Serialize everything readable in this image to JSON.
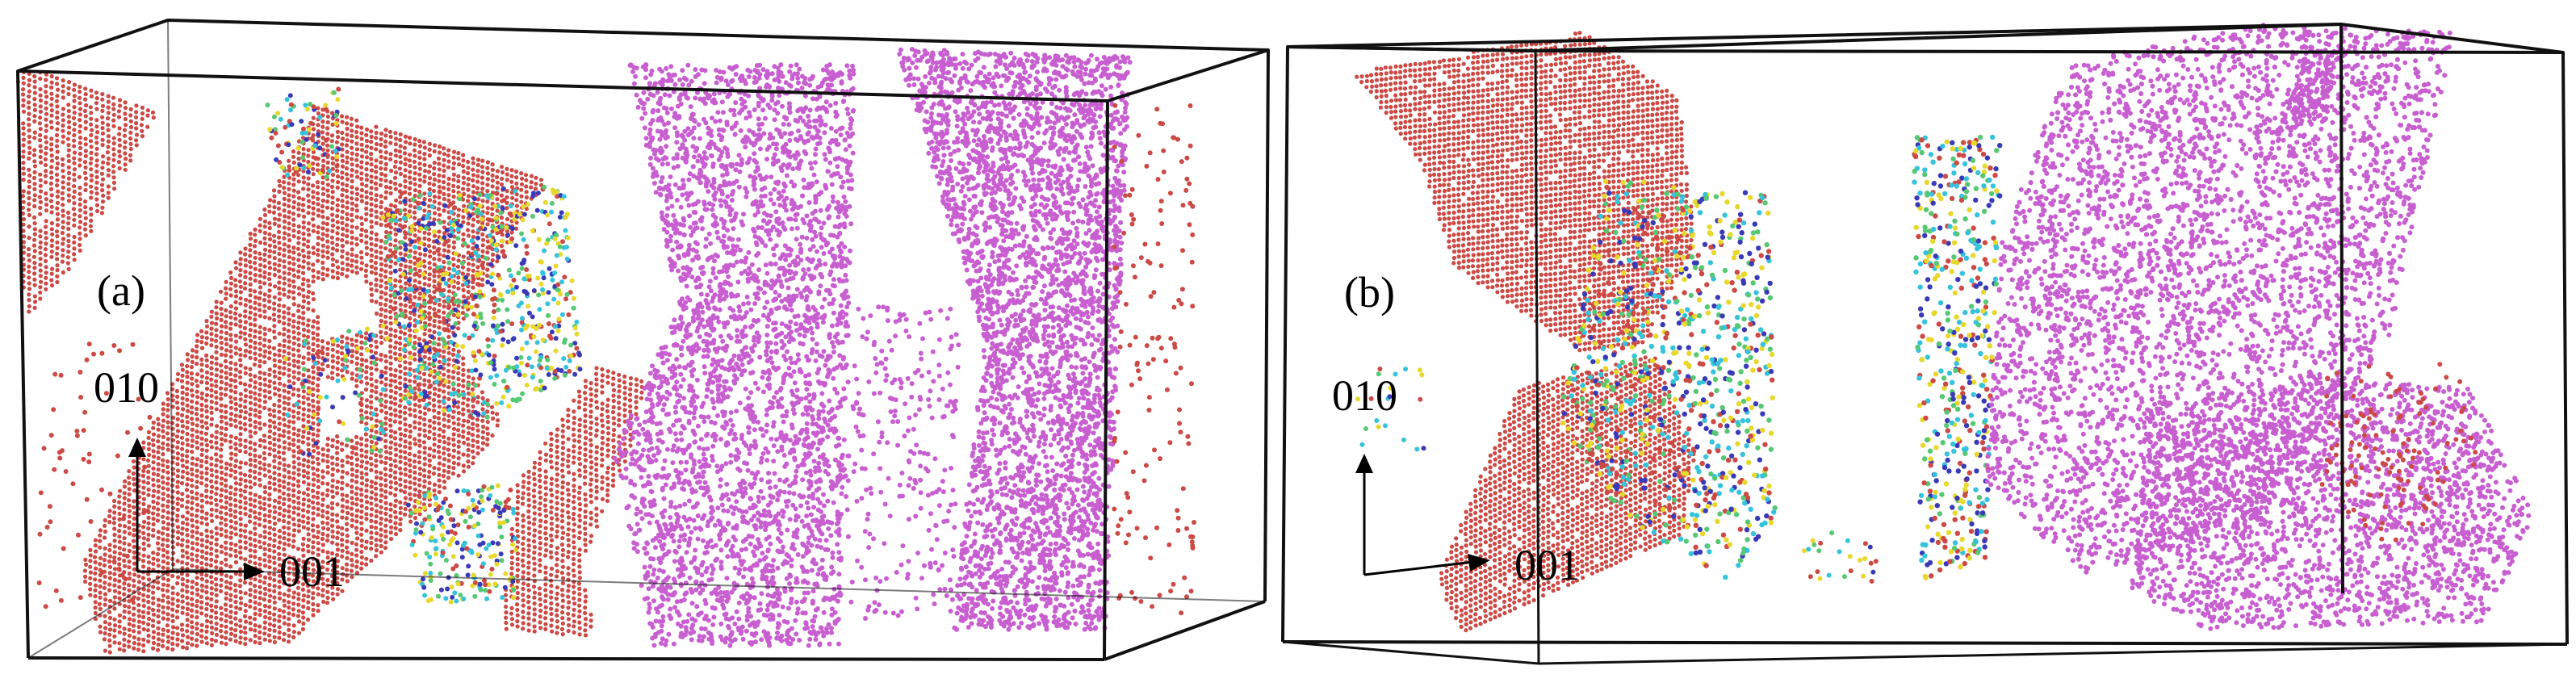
{
  "panels": [
    {
      "id": "a",
      "label": "(a)",
      "axis_vertical_label": "010",
      "axis_horizontal_label": "001"
    },
    {
      "id": "b",
      "label": "(b)",
      "axis_vertical_label": "010",
      "axis_horizontal_label": "001"
    }
  ],
  "colors": {
    "phase_red": "#cc4a45",
    "phase_magenta": "#c85fd0",
    "defect_cyan": "#35c3dc",
    "defect_yellow": "#e8d82c",
    "defect_blue": "#3a3ab8",
    "defect_green": "#56c873",
    "box_edge": "#111111",
    "background": "#ffffff"
  }
}
